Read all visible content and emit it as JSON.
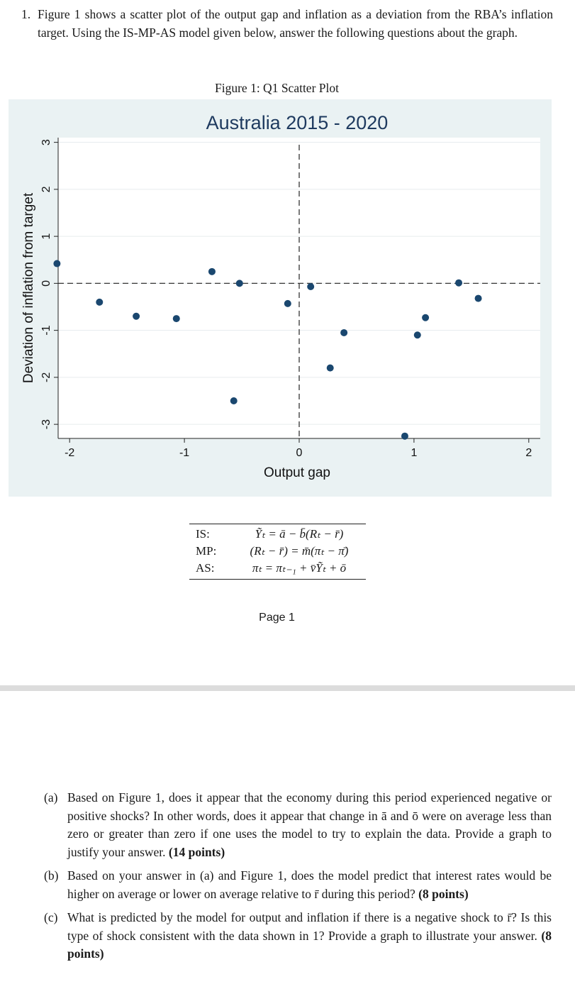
{
  "question": {
    "number": "1.",
    "text": "Figure 1 shows a scatter plot of the output gap and inflation as a deviation from the RBA’s inflation target. Using the IS-MP-AS model given below, answer the following questions about the graph."
  },
  "figure": {
    "caption": "Figure 1: Q1 Scatter Plot"
  },
  "chart_data": {
    "type": "scatter",
    "title": "Australia 2015 - 2020",
    "xlabel": "Output gap",
    "ylabel": "Deviation of inflation from target",
    "xlim": [
      -2.1,
      2.1
    ],
    "ylim": [
      -3.3,
      3.1
    ],
    "xticks": [
      -2,
      -1,
      0,
      1,
      2
    ],
    "xtick_labels": [
      "-2",
      "-1",
      "0",
      "1",
      "2"
    ],
    "yticks": [
      -3,
      -2,
      -1,
      0,
      1,
      2,
      3
    ],
    "ytick_labels": [
      "-3",
      "-2",
      "-1",
      "0",
      "1",
      "2",
      "3"
    ],
    "grid": true,
    "reference_lines": {
      "x": 0,
      "y": 0
    },
    "marker_color": "#1a476f",
    "plot_background": "#eaf2f3",
    "points": [
      {
        "x": -2.11,
        "y": 0.42
      },
      {
        "x": -1.74,
        "y": -0.4
      },
      {
        "x": -1.42,
        "y": -0.7
      },
      {
        "x": -1.07,
        "y": -0.75
      },
      {
        "x": -0.76,
        "y": 0.25
      },
      {
        "x": -0.52,
        "y": 0.0
      },
      {
        "x": -0.57,
        "y": -2.5
      },
      {
        "x": -0.1,
        "y": -0.43
      },
      {
        "x": 0.1,
        "y": -0.07
      },
      {
        "x": 0.27,
        "y": -1.8
      },
      {
        "x": 0.39,
        "y": -1.05
      },
      {
        "x": 0.92,
        "y": -3.25
      },
      {
        "x": 1.03,
        "y": -1.1
      },
      {
        "x": 1.1,
        "y": -0.73
      },
      {
        "x": 1.39,
        "y": 0.01
      },
      {
        "x": 1.56,
        "y": -0.32
      }
    ]
  },
  "equations": [
    {
      "label": "IS:",
      "expr": "Ỹₜ = ā − b̄(Rₜ − r̄)"
    },
    {
      "label": "MP:",
      "expr": "(Rₜ − r̄) = m̄(πₜ − π̄)"
    },
    {
      "label": "AS:",
      "expr": "πₜ = πₜ₋₁ + v̄Ỹₜ + ō"
    }
  ],
  "page_number": "Page 1",
  "parts": [
    {
      "label": "(a)",
      "text": "Based on Figure 1, does it appear that the economy during this period experienced negative or positive shocks? In other words, does it appear that change in ā and ō were on average less than zero or greater than zero if one uses the model to try to explain the data. Provide a graph to justify your answer.",
      "points": "(14 points)"
    },
    {
      "label": "(b)",
      "text": "Based on your answer in (a) and Figure 1, does the model predict that interest rates would be higher on average or lower on average relative to r̄ during this period?",
      "points": "(8 points)"
    },
    {
      "label": "(c)",
      "text": "What is predicted by the model for output and inflation if there is a negative shock to r̄? Is this type of shock consistent with the data shown in 1? Provide a graph to illustrate your answer.",
      "points": "(8 points)"
    }
  ]
}
